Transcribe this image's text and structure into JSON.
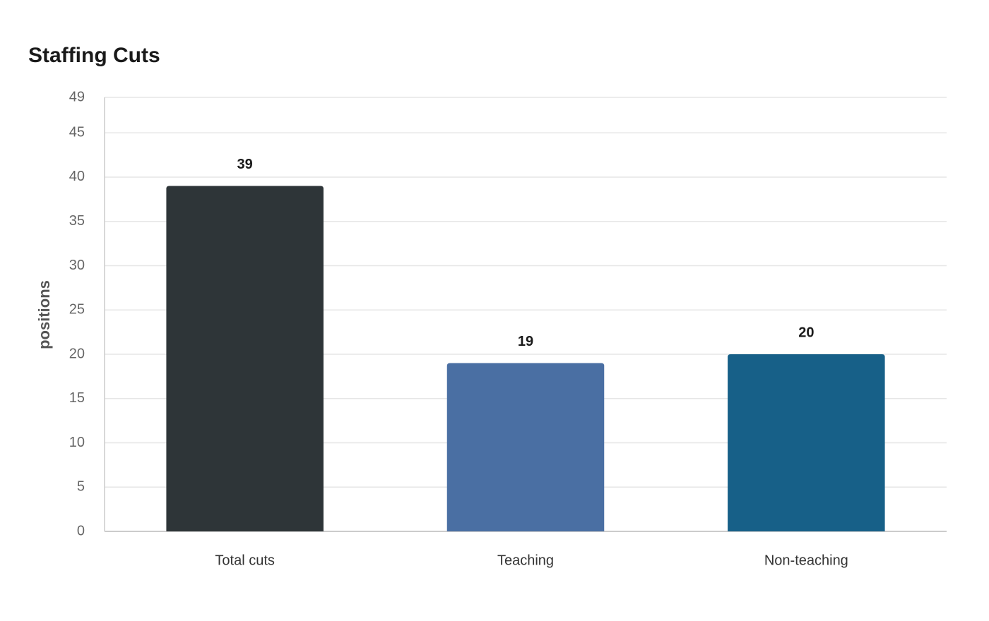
{
  "chart_data": {
    "type": "bar",
    "title": "Staffing Cuts",
    "y_label": "positions",
    "categories": [
      "Total cuts",
      "Teaching",
      "Non-teaching"
    ],
    "values": [
      39,
      19,
      20
    ],
    "colors": [
      "#2e3538",
      "#4a6fa3",
      "#176088"
    ],
    "ylim": [
      0,
      49
    ],
    "yticks": [
      0,
      5,
      10,
      15,
      20,
      25,
      30,
      35,
      40,
      45,
      49
    ],
    "grid": true
  }
}
